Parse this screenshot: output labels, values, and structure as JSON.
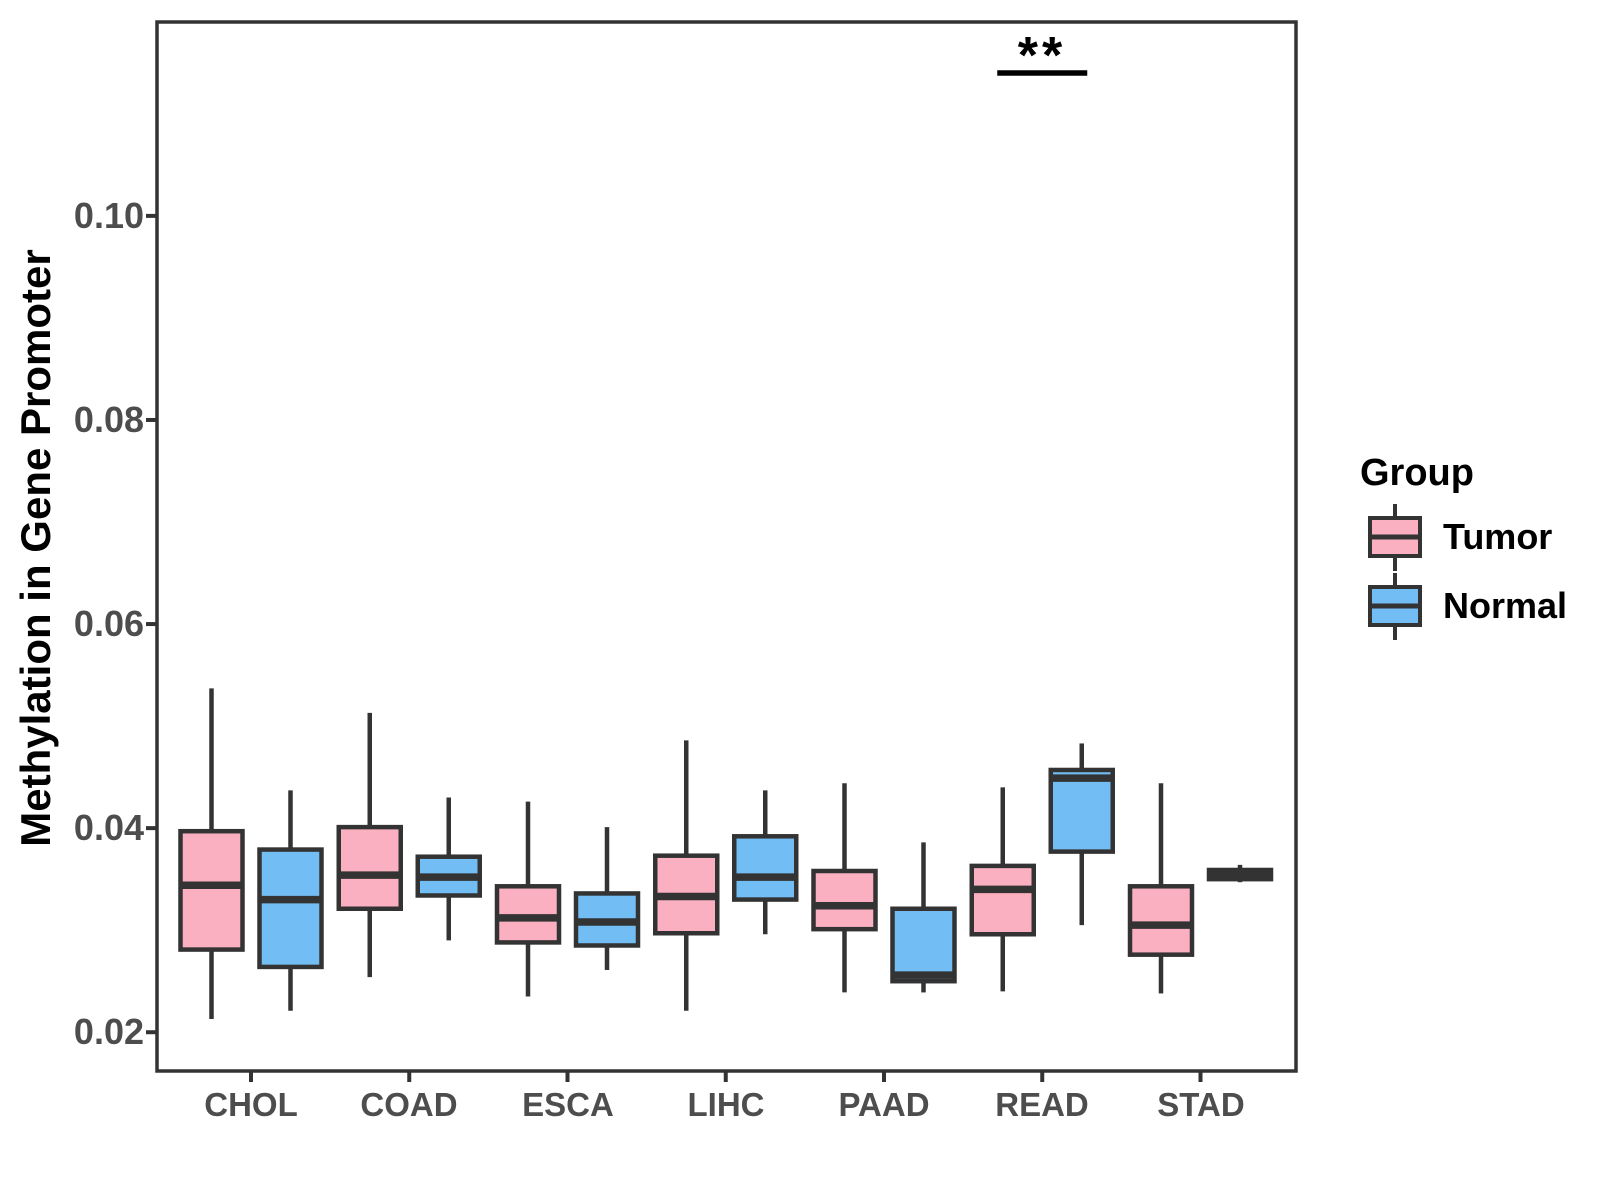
{
  "chart_data": {
    "type": "grouped_boxplot",
    "title": "",
    "ylabel": "Methylation in Gene Promoter",
    "xlabel": "",
    "categories": [
      "CHOL",
      "COAD",
      "ESCA",
      "LIHC",
      "PAAD",
      "READ",
      "STAD"
    ],
    "yticks": [
      0.02,
      0.04,
      0.06,
      0.08,
      0.1
    ],
    "ytick_labels": [
      "0.02",
      "0.04",
      "0.06",
      "0.08",
      "0.10"
    ],
    "ylim": [
      0.0162,
      0.119
    ],
    "grid": false,
    "legend": {
      "title": "Group",
      "position": "right"
    },
    "annotation": {
      "text": "**",
      "category": "READ",
      "line_y": 0.114
    },
    "colors": {
      "stroke": "#333333",
      "tick_label": "#4D4D4D",
      "tumor_fill": "#FAB0C1",
      "normal_fill": "#72BDF3"
    },
    "series": [
      {
        "name": "Tumor",
        "color": "#FAB0C1",
        "values": [
          {
            "min": 0.0213,
            "q1": 0.0281,
            "median": 0.0344,
            "q3": 0.0397,
            "max": 0.0537
          },
          {
            "min": 0.0254,
            "q1": 0.0321,
            "median": 0.0354,
            "q3": 0.0401,
            "max": 0.0513
          },
          {
            "min": 0.0235,
            "q1": 0.0288,
            "median": 0.0312,
            "q3": 0.0343,
            "max": 0.0426
          },
          {
            "min": 0.0221,
            "q1": 0.0297,
            "median": 0.0333,
            "q3": 0.0373,
            "max": 0.0486
          },
          {
            "min": 0.0239,
            "q1": 0.0301,
            "median": 0.0324,
            "q3": 0.0358,
            "max": 0.0444
          },
          {
            "min": 0.024,
            "q1": 0.0296,
            "median": 0.034,
            "q3": 0.0363,
            "max": 0.044
          },
          {
            "min": 0.0238,
            "q1": 0.0276,
            "median": 0.0305,
            "q3": 0.0343,
            "max": 0.0444
          }
        ]
      },
      {
        "name": "Normal",
        "color": "#72BDF3",
        "values": [
          {
            "min": 0.0221,
            "q1": 0.0264,
            "median": 0.033,
            "q3": 0.0379,
            "max": 0.0437
          },
          {
            "min": 0.029,
            "q1": 0.0334,
            "median": 0.0352,
            "q3": 0.0372,
            "max": 0.043
          },
          {
            "min": 0.0261,
            "q1": 0.0285,
            "median": 0.0308,
            "q3": 0.0336,
            "max": 0.0401
          },
          {
            "min": 0.0296,
            "q1": 0.033,
            "median": 0.0352,
            "q3": 0.0392,
            "max": 0.0437
          },
          {
            "min": 0.0239,
            "q1": 0.025,
            "median": 0.0256,
            "q3": 0.0321,
            "max": 0.0386
          },
          {
            "min": 0.0305,
            "q1": 0.0377,
            "median": 0.0449,
            "q3": 0.0457,
            "max": 0.0483
          },
          {
            "min": 0.0347,
            "q1": 0.035,
            "median": 0.0354,
            "q3": 0.0359,
            "max": 0.0364
          }
        ]
      }
    ]
  }
}
